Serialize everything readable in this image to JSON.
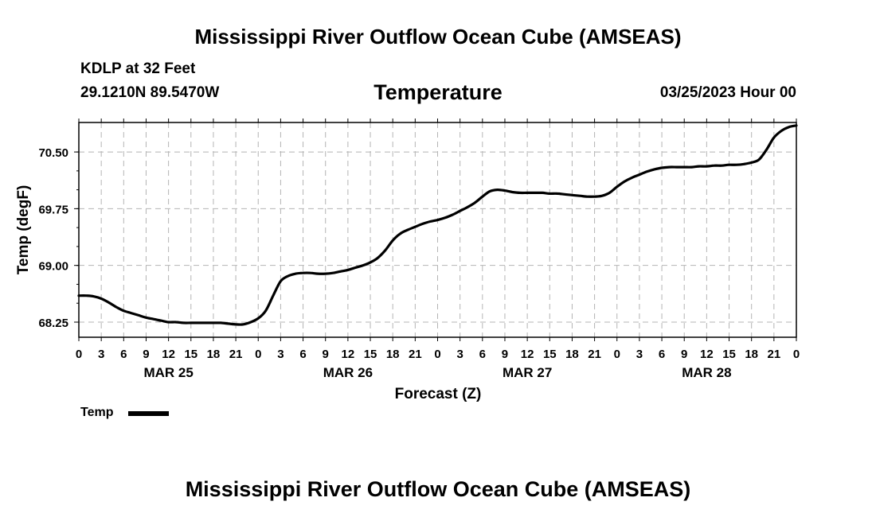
{
  "header": {
    "title": "Mississippi River Outflow Ocean Cube (AMSEAS)",
    "station": "KDLP at 32 Feet",
    "coords": "29.1210N  89.5470W",
    "datetime": "03/25/2023 Hour 00",
    "footer_title": "Mississippi River Outflow Ocean Cube (AMSEAS)"
  },
  "chart_data": {
    "type": "line",
    "title": "Temperature",
    "xlabel": "Forecast (Z)",
    "ylabel": "Temp (degF)",
    "ylim": [
      68.05,
      70.89
    ],
    "xlim": [
      0,
      96
    ],
    "yticks": [
      68.25,
      69.0,
      69.75,
      70.5
    ],
    "ytick_labels": [
      "68.25",
      "69.00",
      "69.75",
      "70.50"
    ],
    "xtick_step": 3,
    "xtick_labels": [
      "0",
      "3",
      "6",
      "9",
      "12",
      "15",
      "18",
      "21",
      "0",
      "3",
      "6",
      "9",
      "12",
      "15",
      "18",
      "21",
      "0",
      "3",
      "6",
      "9",
      "12",
      "15",
      "18",
      "21",
      "0",
      "3",
      "6",
      "9",
      "12",
      "15",
      "18",
      "21",
      "0"
    ],
    "day_labels": [
      {
        "label": "MAR 25",
        "x": 12
      },
      {
        "label": "MAR 26",
        "x": 36
      },
      {
        "label": "MAR 27",
        "x": 60
      },
      {
        "label": "MAR 28",
        "x": 84
      }
    ],
    "grid": true,
    "series": [
      {
        "name": "Temp",
        "color": "#000000",
        "x": [
          0,
          1,
          2,
          3,
          4,
          5,
          6,
          7,
          8,
          9,
          10,
          11,
          12,
          13,
          14,
          15,
          16,
          17,
          18,
          19,
          20,
          21,
          22,
          23,
          24,
          25,
          26,
          27,
          28,
          29,
          30,
          31,
          32,
          33,
          34,
          35,
          36,
          37,
          38,
          39,
          40,
          41,
          42,
          43,
          44,
          45,
          46,
          47,
          48,
          49,
          50,
          51,
          52,
          53,
          54,
          55,
          56,
          57,
          58,
          59,
          60,
          61,
          62,
          63,
          64,
          65,
          66,
          67,
          68,
          69,
          70,
          71,
          72,
          73,
          74,
          75,
          76,
          77,
          78,
          79,
          80,
          81,
          82,
          83,
          84,
          85,
          86,
          87,
          88,
          89,
          90,
          91,
          92,
          93,
          94,
          95,
          96
        ],
        "values": [
          68.6,
          68.6,
          68.59,
          68.56,
          68.51,
          68.45,
          68.4,
          68.37,
          68.34,
          68.31,
          68.29,
          68.27,
          68.25,
          68.25,
          68.24,
          68.24,
          68.24,
          68.24,
          68.24,
          68.24,
          68.23,
          68.22,
          68.22,
          68.25,
          68.3,
          68.4,
          68.6,
          68.79,
          68.86,
          68.89,
          68.9,
          68.9,
          68.89,
          68.89,
          68.9,
          68.92,
          68.94,
          68.97,
          69.0,
          69.04,
          69.1,
          69.2,
          69.33,
          69.42,
          69.47,
          69.51,
          69.55,
          69.58,
          69.6,
          69.63,
          69.67,
          69.72,
          69.77,
          69.83,
          69.91,
          69.98,
          70.0,
          69.99,
          69.97,
          69.96,
          69.96,
          69.96,
          69.96,
          69.95,
          69.95,
          69.94,
          69.93,
          69.92,
          69.91,
          69.91,
          69.92,
          69.96,
          70.04,
          70.11,
          70.16,
          70.2,
          70.24,
          70.27,
          70.29,
          70.3,
          70.3,
          70.3,
          70.3,
          70.31,
          70.31,
          70.32,
          70.32,
          70.33,
          70.33,
          70.34,
          70.36,
          70.4,
          70.53,
          70.69,
          70.78,
          70.83,
          70.85
        ]
      }
    ],
    "legend": [
      {
        "label": "Temp",
        "color": "#000000"
      }
    ],
    "legend_position": "bottom-left"
  }
}
